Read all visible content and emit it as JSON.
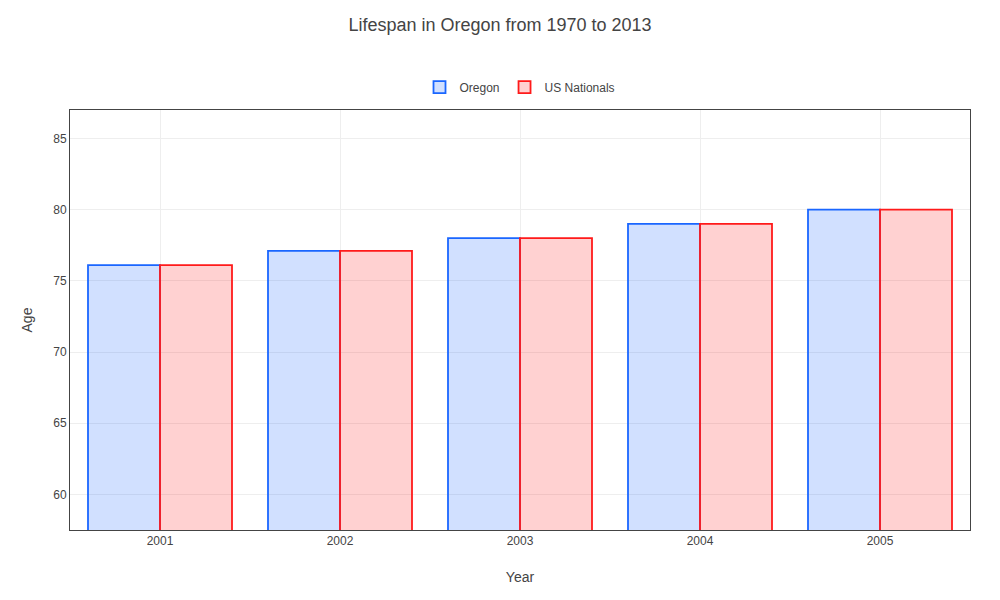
{
  "chart_data": {
    "type": "bar",
    "title": "Lifespan in Oregon from 1970 to 2013",
    "x_label": "Year",
    "y_label": "Age",
    "categories": [
      "2001",
      "2002",
      "2003",
      "2004",
      "2005"
    ],
    "series": [
      {
        "name": "Oregon",
        "color": "#1a66ff",
        "values": [
          76.1,
          77.1,
          78.0,
          79.0,
          80.0
        ]
      },
      {
        "name": "US Nationals",
        "color": "#ff1a1a",
        "values": [
          76.1,
          77.1,
          78.0,
          79.0,
          80.0
        ]
      }
    ],
    "ylim": [
      57.5,
      87
    ],
    "yticks": [
      60,
      65,
      70,
      75,
      80,
      85
    ],
    "grid": true,
    "legend": "top"
  }
}
